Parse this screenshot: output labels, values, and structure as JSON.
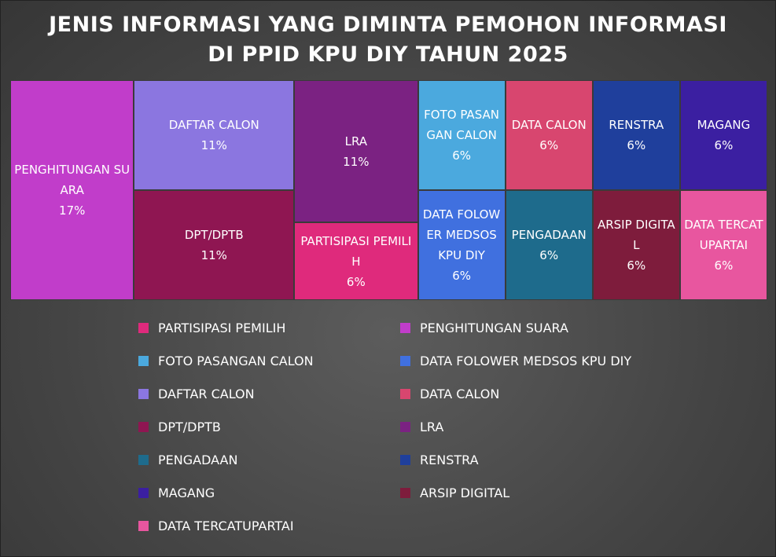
{
  "chart_data": {
    "type": "treemap",
    "title": "JENIS INFORMASI YANG DIMINTA PEMOHON INFORMASI DI PPID KPU DIY TAHUN 2025",
    "categories": [
      "PARTISIPASI PEMILIH",
      "PENGHITUNGAN SUARA",
      "FOTO PASANGAN CALON",
      "DATA FOLOWER MEDSOS KPU DIY",
      "DAFTAR CALON",
      "DATA CALON",
      "DPT/DPTB",
      "LRA",
      "PENGADAAN",
      "RENSTRA",
      "MAGANG",
      "ARSIP DIGITAL",
      "DATA TERCATUPARTAI"
    ],
    "values": [
      6,
      17,
      6,
      6,
      11,
      6,
      11,
      11,
      6,
      6,
      6,
      6,
      6
    ],
    "value_labels": [
      "6%",
      "17%",
      "6%",
      "6%",
      "11%",
      "6%",
      "11%",
      "11%",
      "6%",
      "6%",
      "6%",
      "6%",
      "6%"
    ],
    "colors": [
      "#df2a7c",
      "#c13dca",
      "#4ba9de",
      "#4070df",
      "#8b76e0",
      "#d8466f",
      "#8f1652",
      "#7b2282",
      "#1e6b8c",
      "#1f3f9c",
      "#3b1fa1",
      "#7e1c3c",
      "#e8569f"
    ],
    "legend": "bottom"
  }
}
